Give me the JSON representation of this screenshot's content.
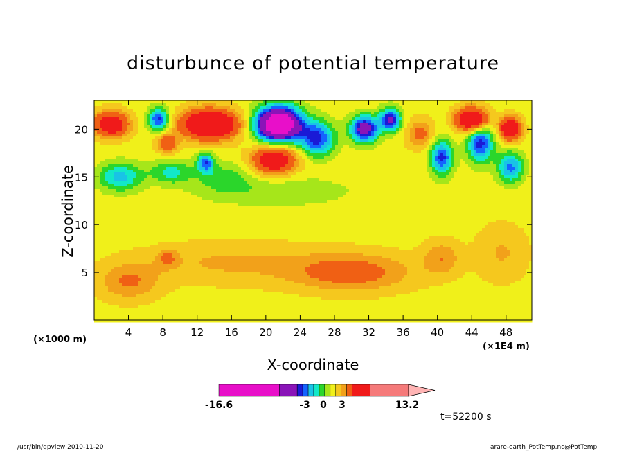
{
  "chart_data": {
    "type": "heatmap",
    "title": "disturbunce of potential temperature",
    "xlabel": "X-coordinate",
    "ylabel": "Z-coordinate",
    "x_unit_note": "(×1E4 m)",
    "y_unit_note": "(×1000 m)",
    "xlim": [
      0,
      51
    ],
    "ylim": [
      0,
      23
    ],
    "xticks": [
      4,
      8,
      12,
      16,
      20,
      24,
      28,
      32,
      36,
      40,
      44,
      48
    ],
    "yticks": [
      5,
      10,
      15,
      20
    ],
    "colorbar": {
      "labels": [
        "-16.6",
        "-3",
        "0",
        "3",
        "13.2"
      ],
      "levels": [
        -16.6,
        -9,
        -6,
        -5,
        -4,
        -3,
        -2,
        -1,
        0,
        1,
        2,
        3,
        5,
        13.2
      ],
      "colors": [
        "#e80fc9",
        "#8a14b8",
        "#1a1ad6",
        "#1463ff",
        "#19c3e6",
        "#12e8c8",
        "#2bd62b",
        "#a6e61a",
        "#f0f01a",
        "#f5c81e",
        "#f2a11a",
        "#f06014",
        "#f01a1a",
        "#f57a7a",
        "#ffb4b4"
      ]
    },
    "field_blobs": [
      {
        "x": 21.5,
        "z": 20.5,
        "v": -14,
        "rx": 2.6,
        "rz": 1.8
      },
      {
        "x": 31.5,
        "z": 20.0,
        "v": -8,
        "rx": 1.6,
        "rz": 1.4
      },
      {
        "x": 34.5,
        "z": 21.0,
        "v": -7,
        "rx": 1.2,
        "rz": 1.2
      },
      {
        "x": 26.0,
        "z": 19.0,
        "v": -6,
        "rx": 2.0,
        "rz": 1.8
      },
      {
        "x": 7.5,
        "z": 21.0,
        "v": -6,
        "rx": 1.2,
        "rz": 1.2
      },
      {
        "x": 13.0,
        "z": 16.5,
        "v": -5,
        "rx": 1.0,
        "rz": 1.0
      },
      {
        "x": 40.5,
        "z": 17.0,
        "v": -6,
        "rx": 1.3,
        "rz": 1.8
      },
      {
        "x": 45.0,
        "z": 18.5,
        "v": -6,
        "rx": 1.5,
        "rz": 2.0
      },
      {
        "x": 48.5,
        "z": 16.0,
        "v": -5,
        "rx": 1.5,
        "rz": 1.6
      },
      {
        "x": 3.0,
        "z": 15.0,
        "v": -4,
        "rx": 2.5,
        "rz": 1.5
      },
      {
        "x": 9.0,
        "z": 15.5,
        "v": -3,
        "rx": 2.5,
        "rz": 1.2
      },
      {
        "x": 15.0,
        "z": 15.0,
        "v": -2,
        "rx": 3.0,
        "rz": 1.5
      },
      {
        "x": 13.5,
        "z": 20.5,
        "v": 10,
        "rx": 3.2,
        "rz": 1.5
      },
      {
        "x": 2.0,
        "z": 20.5,
        "v": 7,
        "rx": 2.0,
        "rz": 1.3
      },
      {
        "x": 8.5,
        "z": 18.5,
        "v": 4,
        "rx": 1.2,
        "rz": 1.0
      },
      {
        "x": 21.0,
        "z": 16.8,
        "v": 7,
        "rx": 2.5,
        "rz": 1.5
      },
      {
        "x": 44.0,
        "z": 21.0,
        "v": 9,
        "rx": 1.8,
        "rz": 1.2
      },
      {
        "x": 48.5,
        "z": 20.0,
        "v": 8,
        "rx": 1.2,
        "rz": 1.2
      },
      {
        "x": 38.0,
        "z": 19.5,
        "v": 3,
        "rx": 1.5,
        "rz": 1.5
      },
      {
        "x": 21.0,
        "z": 13.5,
        "v": -1.5,
        "rx": 9.0,
        "rz": 1.6
      },
      {
        "x": 4.0,
        "z": 4.0,
        "v": 2.5,
        "rx": 3.5,
        "rz": 2.0
      },
      {
        "x": 16.0,
        "z": 6.0,
        "v": 1.6,
        "rx": 10.0,
        "rz": 2.2
      },
      {
        "x": 30.0,
        "z": 5.0,
        "v": 3.2,
        "rx": 7.0,
        "rz": 2.0
      },
      {
        "x": 40.5,
        "z": 6.5,
        "v": 2.2,
        "rx": 2.2,
        "rz": 1.8
      },
      {
        "x": 47.5,
        "z": 7.0,
        "v": 1.5,
        "rx": 3.0,
        "rz": 3.0
      },
      {
        "x": 8.5,
        "z": 6.5,
        "v": 2.0,
        "rx": 1.2,
        "rz": 1.0
      }
    ]
  },
  "colorbar_title_note": "t=52200 s",
  "footer": {
    "left": "/usr/bin/gpview   2010-11-20",
    "right": "arare-earth_PotTemp.nc@PotTemp"
  }
}
